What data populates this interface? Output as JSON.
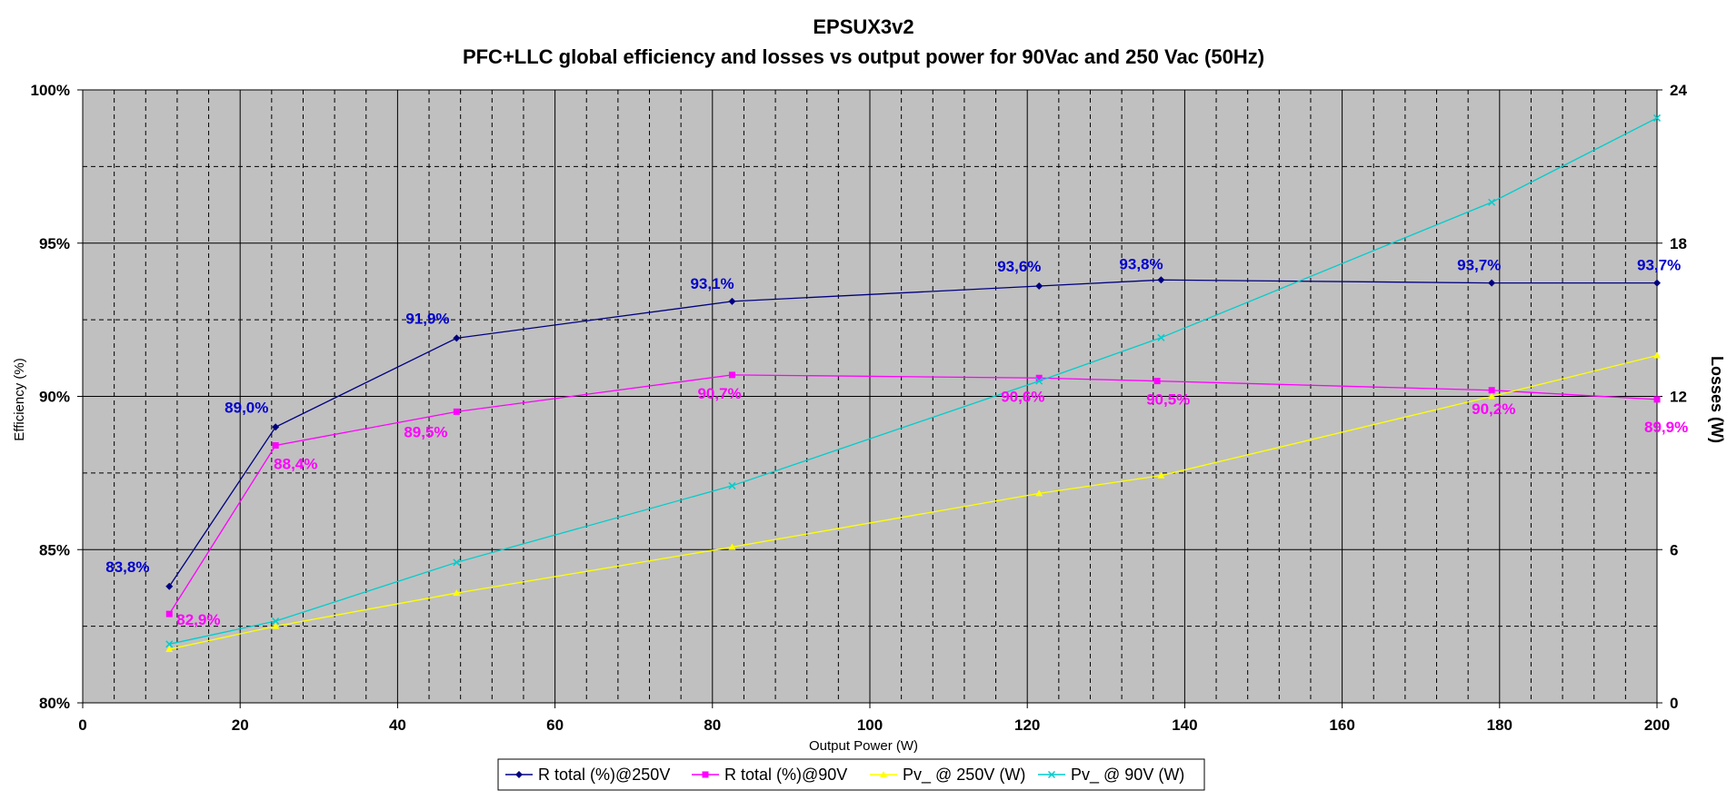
{
  "chart_data": {
    "type": "line",
    "title": "EPSUX3v2",
    "subtitle": "PFC+LLC  global efficiency  and losses vs output power for  90Vac and 250 Vac (50Hz)",
    "xlabel": "Output Power (W)",
    "ylabel": "Efficiency (%)",
    "y2label": "Losses (W)",
    "xlim": [
      0,
      200
    ],
    "ylim": [
      80,
      100
    ],
    "y2lim": [
      0,
      24
    ],
    "x_ticks": [
      "0",
      "20",
      "40",
      "60",
      "80",
      "100",
      "120",
      "140",
      "160",
      "180",
      "200"
    ],
    "y_ticks": [
      "80%",
      "85%",
      "90%",
      "95%",
      "100%"
    ],
    "y2_ticks": [
      "0",
      "6",
      "12",
      "18",
      "24"
    ],
    "grid": true,
    "legend_position": "bottom",
    "plot_background": "#c0c0c0",
    "series": [
      {
        "name": "R total (%)@250V",
        "axis": "left",
        "color": "#000080",
        "marker": "diamond",
        "x": [
          11,
          24.5,
          47.5,
          82.5,
          121.5,
          137,
          179,
          200
        ],
        "y": [
          83.8,
          89.0,
          91.9,
          93.1,
          93.6,
          93.8,
          93.7,
          93.7
        ],
        "labels": [
          "83,8%",
          "89,0%",
          "91,9%",
          "93,1%",
          "93,6%",
          "93,8%",
          "93,7%",
          "93,7%"
        ],
        "label_color": "#0000cc"
      },
      {
        "name": "R total (%)@90V",
        "axis": "left",
        "color": "#ff00ff",
        "marker": "square",
        "x": [
          11,
          24.5,
          47.5,
          82.5,
          121.5,
          136.5,
          179,
          200
        ],
        "y": [
          82.9,
          88.4,
          89.5,
          90.7,
          90.6,
          90.5,
          90.2,
          89.9
        ],
        "labels": [
          "82,9%",
          "88,4%",
          "89,5%",
          "90,7%",
          "90,6%",
          "90,5%",
          "90,2%",
          "89,9%"
        ],
        "label_color": "#ff00ff"
      },
      {
        "name": "Pv_ @ 250V (W)",
        "axis": "right",
        "color": "#ffff00",
        "marker": "triangle",
        "x": [
          11,
          24.5,
          47.5,
          82.5,
          121.5,
          137,
          179,
          200
        ],
        "y": [
          2.1,
          3.0,
          4.3,
          6.1,
          8.2,
          8.9,
          12.0,
          13.6
        ]
      },
      {
        "name": "Pv_ @ 90V (W)",
        "axis": "right",
        "color": "#00cccc",
        "marker": "x",
        "x": [
          11,
          24.5,
          47.5,
          82.5,
          121.5,
          137,
          179,
          200
        ],
        "y": [
          2.3,
          3.2,
          5.5,
          8.5,
          12.6,
          14.3,
          19.6,
          22.9
        ]
      }
    ]
  }
}
